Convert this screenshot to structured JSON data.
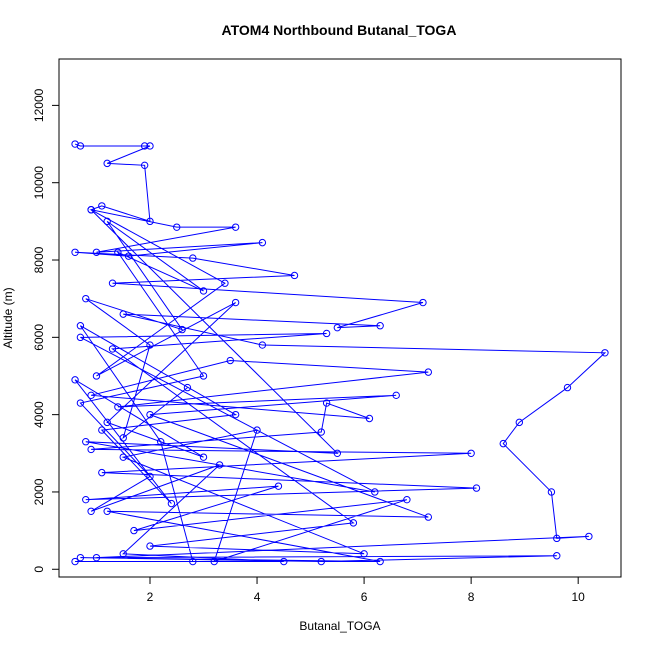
{
  "chart_data": {
    "type": "line",
    "title": "ATOM4 Northbound Butanal_TOGA",
    "xlabel": "Butanal_TOGA",
    "ylabel": "Altitude (m)",
    "xlim": [
      0.3,
      10.8
    ],
    "ylim": [
      -200,
      13200
    ],
    "xticks": [
      2,
      4,
      6,
      8,
      10
    ],
    "yticks": [
      0,
      2000,
      4000,
      6000,
      8000,
      10000,
      12000
    ],
    "grid": false,
    "legend": "none",
    "color": "#0000ff",
    "marker": "open-circle",
    "series": [
      {
        "points": [
          [
            0.6,
            11000
          ],
          [
            0.7,
            10950
          ],
          [
            1.9,
            10950
          ],
          [
            2.0,
            10950
          ],
          [
            1.2,
            10500
          ],
          [
            1.9,
            10450
          ],
          [
            2.0,
            9000
          ],
          [
            1.1,
            9400
          ],
          [
            0.9,
            9300
          ],
          [
            2.5,
            8850
          ],
          [
            3.6,
            8850
          ],
          [
            1.0,
            8200
          ],
          [
            4.1,
            8450
          ],
          [
            1.6,
            8100
          ],
          [
            0.6,
            8200
          ],
          [
            2.8,
            8050
          ],
          [
            4.7,
            7600
          ],
          [
            1.3,
            7400
          ],
          [
            7.1,
            6900
          ],
          [
            5.5,
            6250
          ],
          [
            6.3,
            6300
          ],
          [
            1.5,
            6600
          ],
          [
            4.1,
            5800
          ],
          [
            10.5,
            5600
          ],
          [
            9.8,
            4700
          ],
          [
            8.9,
            3800
          ],
          [
            8.6,
            3250
          ],
          [
            9.5,
            2000
          ],
          [
            9.6,
            800
          ],
          [
            10.2,
            850
          ],
          [
            1.0,
            300
          ],
          [
            9.6,
            350
          ],
          [
            5.2,
            200
          ],
          [
            0.7,
            300
          ],
          [
            6.3,
            200
          ],
          [
            1.2,
            1500
          ],
          [
            7.2,
            1350
          ],
          [
            2.0,
            4000
          ],
          [
            6.6,
            4500
          ],
          [
            1.4,
            4200
          ],
          [
            7.2,
            5100
          ],
          [
            3.5,
            5400
          ],
          [
            0.9,
            4500
          ],
          [
            6.1,
            3900
          ],
          [
            5.3,
            4300
          ],
          [
            5.2,
            3550
          ],
          [
            0.9,
            3100
          ],
          [
            8.0,
            3000
          ],
          [
            1.1,
            2500
          ],
          [
            8.1,
            2100
          ],
          [
            0.8,
            1800
          ],
          [
            4.4,
            2150
          ],
          [
            1.7,
            1000
          ],
          [
            6.8,
            1800
          ],
          [
            3.2,
            200
          ],
          [
            4.0,
            3600
          ],
          [
            1.5,
            2900
          ],
          [
            6.0,
            400
          ],
          [
            2.0,
            600
          ],
          [
            5.8,
            1200
          ],
          [
            1.3,
            5700
          ],
          [
            5.3,
            6100
          ],
          [
            0.7,
            6000
          ],
          [
            6.2,
            2000
          ],
          [
            0.8,
            3300
          ],
          [
            5.5,
            3000
          ],
          [
            0.9,
            9300
          ],
          [
            3.4,
            7400
          ],
          [
            1.0,
            5000
          ],
          [
            3.6,
            6900
          ],
          [
            1.2,
            3800
          ],
          [
            3.0,
            2900
          ],
          [
            0.6,
            4900
          ],
          [
            2.4,
            1700
          ],
          [
            1.1,
            3600
          ],
          [
            3.6,
            4000
          ],
          [
            0.7,
            6300
          ],
          [
            2.2,
            3300
          ],
          [
            2.8,
            200
          ],
          [
            0.6,
            200
          ],
          [
            4.5,
            200
          ],
          [
            1.5,
            400
          ],
          [
            3.3,
            2700
          ],
          [
            0.9,
            1500
          ],
          [
            2.0,
            2400
          ],
          [
            0.7,
            4300
          ],
          [
            3.0,
            5000
          ],
          [
            1.4,
            8200
          ],
          [
            3.0,
            7200
          ],
          [
            1.2,
            9000
          ],
          [
            2.6,
            6200
          ],
          [
            0.8,
            7000
          ],
          [
            2.0,
            5800
          ],
          [
            1.5,
            3400
          ],
          [
            2.7,
            4700
          ]
        ]
      }
    ]
  }
}
